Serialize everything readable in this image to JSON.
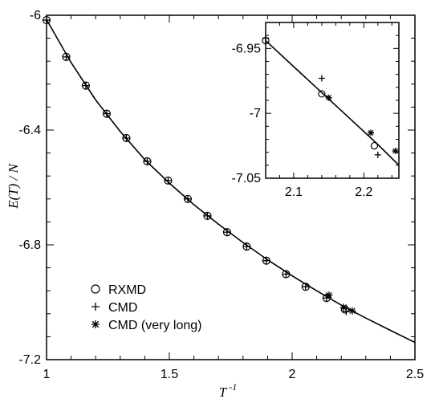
{
  "chart_data": [
    {
      "type": "scatter",
      "xlabel": "T",
      "xlabel_sup": "-1",
      "ylabel": "E(T) / N",
      "xlim": [
        1.0,
        2.5
      ],
      "ylim": [
        -7.2,
        -6.0
      ],
      "xticks": [
        1,
        1.5,
        2,
        2.5
      ],
      "xtick_labels": [
        "1",
        "1.5",
        "2",
        "2.5"
      ],
      "yticks": [
        -6.0,
        -6.4,
        -6.8,
        -7.2
      ],
      "ytick_labels": [
        "-6",
        "-6.4",
        "-6.8",
        "-7.2"
      ],
      "legend_position": "lower-left",
      "series": [
        {
          "name": "RXMD",
          "marker": "circle",
          "x": [
            1.0,
            1.08,
            1.16,
            1.245,
            1.325,
            1.41,
            1.495,
            1.575,
            1.655,
            1.735,
            1.815,
            1.895,
            1.975,
            2.055,
            2.14,
            2.215
          ],
          "y": [
            -6.017,
            -6.145,
            -6.245,
            -6.343,
            -6.428,
            -6.509,
            -6.576,
            -6.64,
            -6.699,
            -6.756,
            -6.806,
            -6.855,
            -6.902,
            -6.946,
            -6.985,
            -7.025
          ]
        },
        {
          "name": "CMD",
          "marker": "plus",
          "x": [
            1.0,
            1.08,
            1.16,
            1.245,
            1.325,
            1.41,
            1.495,
            1.575,
            1.655,
            1.735,
            1.815,
            1.895,
            1.975,
            2.055,
            2.14,
            2.22
          ],
          "y": [
            -6.017,
            -6.145,
            -6.245,
            -6.343,
            -6.428,
            -6.509,
            -6.576,
            -6.64,
            -6.699,
            -6.756,
            -6.806,
            -6.855,
            -6.902,
            -6.946,
            -6.985,
            -7.032
          ]
        },
        {
          "name": "CMD (very long)",
          "marker": "asterisk",
          "x": [
            2.15,
            2.21,
            2.245
          ],
          "y": [
            -6.975,
            -7.018,
            -7.03
          ]
        },
        {
          "name": "",
          "marker": "line",
          "x": [
            1.0,
            1.1,
            1.2,
            1.3,
            1.4,
            1.5,
            1.6,
            1.7,
            1.8,
            1.9,
            2.0,
            2.1,
            2.2,
            2.3,
            2.4,
            2.5
          ],
          "y": [
            -6.015,
            -6.165,
            -6.295,
            -6.405,
            -6.503,
            -6.585,
            -6.66,
            -6.728,
            -6.792,
            -6.852,
            -6.908,
            -6.96,
            -7.01,
            -7.055,
            -7.098,
            -7.14
          ]
        }
      ]
    },
    {
      "type": "scatter",
      "xlim": [
        2.06,
        2.25
      ],
      "ylim": [
        -7.05,
        -6.93
      ],
      "xticks": [
        2.1,
        2.2
      ],
      "xtick_labels": [
        "2.1",
        "2.2"
      ],
      "yticks": [
        -6.95,
        -7.0,
        -7.05
      ],
      "ytick_labels": [
        "-6.95",
        "-7",
        "-7.05"
      ],
      "series": [
        {
          "name": "",
          "marker": "circle",
          "x": [
            2.06,
            2.14,
            2.215
          ],
          "y": [
            -6.944,
            -6.985,
            -7.025
          ]
        },
        {
          "name": "",
          "marker": "plus",
          "x": [
            2.06,
            2.14,
            2.22
          ],
          "y": [
            -6.942,
            -6.973,
            -7.032
          ]
        },
        {
          "name": "",
          "marker": "asterisk",
          "x": [
            2.15,
            2.21,
            2.245
          ],
          "y": [
            -6.988,
            -7.015,
            -7.029
          ]
        },
        {
          "name": "",
          "marker": "line",
          "x": [
            2.06,
            2.1,
            2.14,
            2.18,
            2.22,
            2.25
          ],
          "y": [
            -6.944,
            -6.964,
            -6.984,
            -7.004,
            -7.024,
            -7.04
          ]
        }
      ]
    }
  ]
}
